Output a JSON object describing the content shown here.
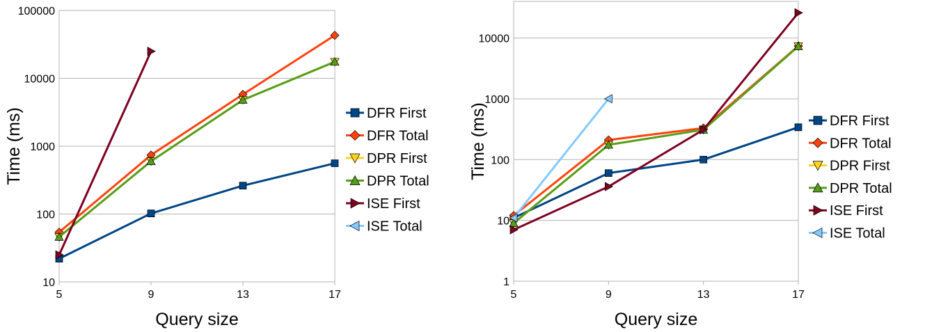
{
  "chart_data": [
    {
      "type": "line",
      "title": "",
      "xlabel": "Query size",
      "ylabel": "Time (ms)",
      "y_scale": "log",
      "ylim": [
        10,
        100000
      ],
      "xlim": [
        5,
        17
      ],
      "x_ticks": [
        "5",
        "9",
        "13",
        "17"
      ],
      "y_ticks": [
        "10",
        "100",
        "1000",
        "10000",
        "100000"
      ],
      "grid": "horizontal",
      "legend_position": "right",
      "x": [
        5,
        9,
        13,
        17
      ],
      "series": [
        {
          "name": "DFR First",
          "color": "#004586",
          "marker": "square",
          "values": [
            22,
            102,
            262,
            560
          ]
        },
        {
          "name": "DFR Total",
          "color": "#ff420e",
          "marker": "diamond",
          "values": [
            54,
            740,
            5800,
            43000
          ]
        },
        {
          "name": "DPR First",
          "color": "#ffd320",
          "marker": "triangle-down",
          "values": [
            46,
            600,
            4800,
            17500
          ]
        },
        {
          "name": "DPR Total",
          "color": "#579d1c",
          "marker": "triangle-up",
          "values": [
            46,
            600,
            4800,
            17500
          ]
        },
        {
          "name": "ISE First",
          "color": "#7e0021",
          "marker": "triangle-right",
          "values": [
            25,
            25000,
            null,
            null
          ]
        },
        {
          "name": "ISE Total",
          "color": "#83caff",
          "marker": "triangle-left",
          "values": [
            null,
            null,
            null,
            null
          ]
        }
      ]
    },
    {
      "type": "line",
      "title": "",
      "xlabel": "Query size",
      "ylabel": "Time (ms)",
      "y_scale": "log",
      "ylim": [
        1,
        40000
      ],
      "xlim": [
        5,
        17
      ],
      "x_ticks": [
        "5",
        "9",
        "13",
        "17"
      ],
      "y_ticks": [
        "1",
        "10",
        "100",
        "1000",
        "10000"
      ],
      "grid": "horizontal",
      "legend_position": "right",
      "x": [
        5,
        9,
        13,
        17
      ],
      "series": [
        {
          "name": "DFR First",
          "color": "#004586",
          "marker": "square",
          "values": [
            11,
            60,
            100,
            340
          ]
        },
        {
          "name": "DFR Total",
          "color": "#ff420e",
          "marker": "diamond",
          "values": [
            12,
            210,
            330,
            7400
          ]
        },
        {
          "name": "DPR First",
          "color": "#ffd320",
          "marker": "triangle-down",
          "values": [
            9,
            175,
            310,
            7300
          ]
        },
        {
          "name": "DPR Total",
          "color": "#579d1c",
          "marker": "triangle-up",
          "values": [
            9,
            175,
            310,
            7300
          ]
        },
        {
          "name": "ISE First",
          "color": "#7e0021",
          "marker": "triangle-right",
          "values": [
            7,
            36,
            310,
            26000
          ]
        },
        {
          "name": "ISE Total",
          "color": "#83caff",
          "marker": "triangle-left",
          "values": [
            11,
            1000,
            null,
            null
          ]
        }
      ]
    }
  ]
}
